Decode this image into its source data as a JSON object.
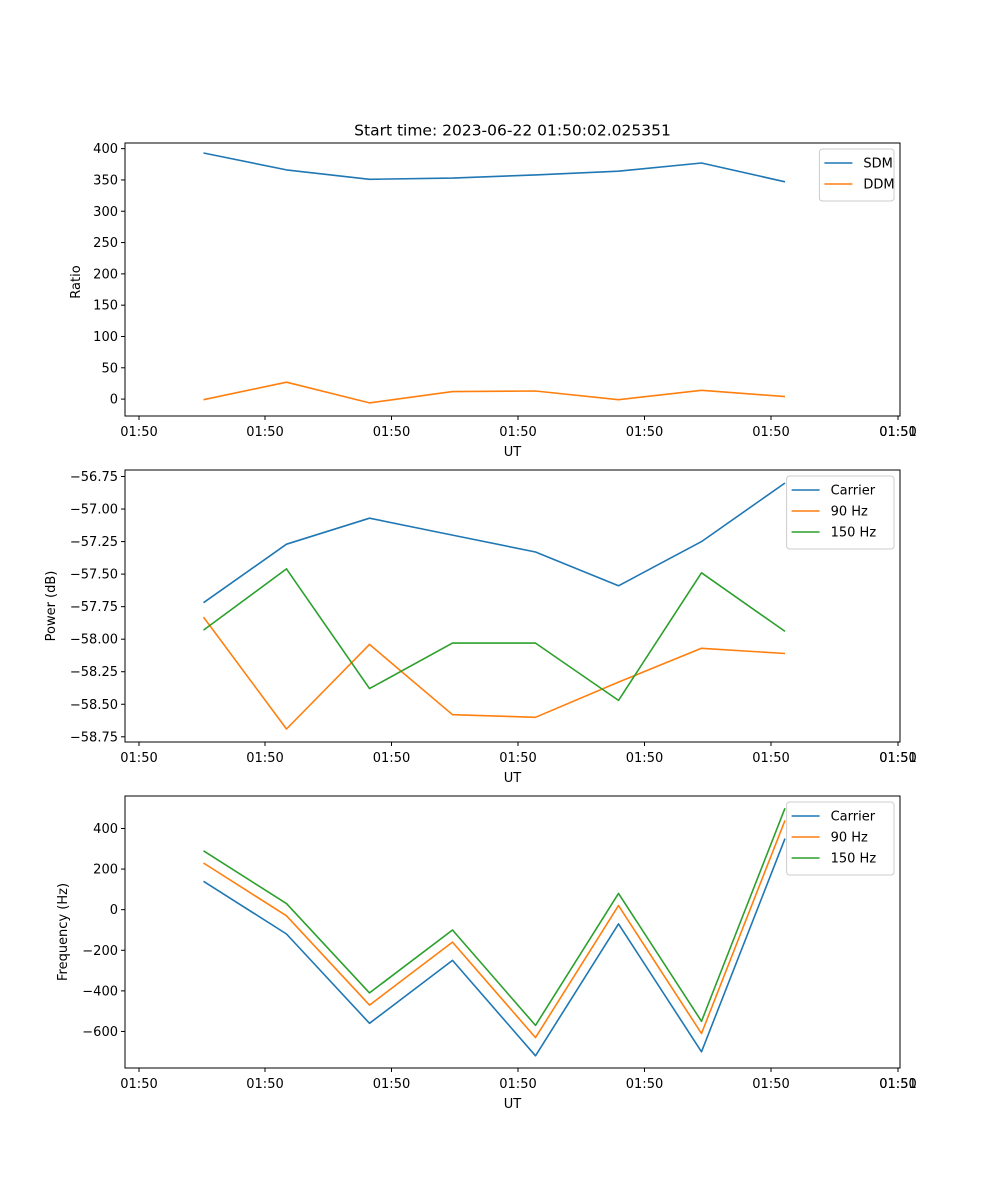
{
  "chart_data": [
    {
      "type": "line",
      "title": "Start time: 2023-06-22 01:50:02.025351",
      "xlabel": "UT",
      "ylabel": "Ratio",
      "x_tick_labels": [
        "01:50",
        "01:50",
        "01:50",
        "01:50",
        "01:50",
        "01:50",
        "01:50",
        "01:51"
      ],
      "y_ticks": [
        0,
        50,
        100,
        150,
        200,
        250,
        300,
        350,
        400
      ],
      "y_tick_labels": [
        "0",
        "50",
        "100",
        "150",
        "200",
        "250",
        "300",
        "350",
        "400"
      ],
      "ylim": [
        -27,
        409
      ],
      "grid": false,
      "legend": "upper right",
      "series": [
        {
          "name": "SDM",
          "color": "#1f77b4",
          "values": [
            393,
            366,
            351,
            353,
            358,
            364,
            377,
            347
          ]
        },
        {
          "name": "DDM",
          "color": "#ff7f0e",
          "values": [
            -1,
            27,
            -6,
            12,
            13,
            -1,
            14,
            4
          ]
        }
      ]
    },
    {
      "type": "line",
      "title": "",
      "xlabel": "UT",
      "ylabel": "Power (dB)",
      "x_tick_labels": [
        "01:50",
        "01:50",
        "01:50",
        "01:50",
        "01:50",
        "01:50",
        "01:50",
        "01:51"
      ],
      "y_ticks": [
        -58.75,
        -58.5,
        -58.25,
        -58.0,
        -57.75,
        -57.5,
        -57.25,
        -57.0,
        -56.75
      ],
      "y_tick_labels": [
        "−58.75",
        "−58.50",
        "−58.25",
        "−58.00",
        "−57.75",
        "−57.50",
        "−57.25",
        "−57.00",
        "−56.75"
      ],
      "ylim": [
        -58.79,
        -56.7
      ],
      "grid": false,
      "legend": "upper right",
      "series": [
        {
          "name": "Carrier",
          "color": "#1f77b4",
          "values": [
            -57.72,
            -57.27,
            -57.07,
            -57.2,
            -57.33,
            -57.59,
            -57.25,
            -56.8
          ]
        },
        {
          "name": "90 Hz",
          "color": "#ff7f0e",
          "values": [
            -57.83,
            -58.69,
            -58.04,
            -58.58,
            -58.6,
            -58.33,
            -58.07,
            -58.11
          ]
        },
        {
          "name": "150 Hz",
          "color": "#2ca02c",
          "values": [
            -57.93,
            -57.46,
            -58.38,
            -58.03,
            -58.03,
            -58.47,
            -57.49,
            -57.94
          ]
        }
      ]
    },
    {
      "type": "line",
      "title": "",
      "xlabel": "UT",
      "ylabel": "Frequency (Hz)",
      "x_tick_labels": [
        "01:50",
        "01:50",
        "01:50",
        "01:50",
        "01:50",
        "01:50",
        "01:50",
        "01:51"
      ],
      "y_ticks": [
        -600,
        -400,
        -200,
        0,
        200,
        400
      ],
      "y_tick_labels": [
        "−600",
        "−400",
        "−200",
        "0",
        "200",
        "400"
      ],
      "ylim": [
        -780,
        560
      ],
      "grid": false,
      "legend": "upper right",
      "series": [
        {
          "name": "Carrier",
          "color": "#1f77b4",
          "values": [
            140,
            -120,
            -560,
            -250,
            -720,
            -70,
            -700,
            350
          ]
        },
        {
          "name": "90 Hz",
          "color": "#ff7f0e",
          "values": [
            230,
            -30,
            -470,
            -160,
            -630,
            20,
            -610,
            440
          ]
        },
        {
          "name": "150 Hz",
          "color": "#2ca02c",
          "values": [
            290,
            30,
            -410,
            -100,
            -570,
            80,
            -550,
            500
          ]
        }
      ]
    }
  ]
}
